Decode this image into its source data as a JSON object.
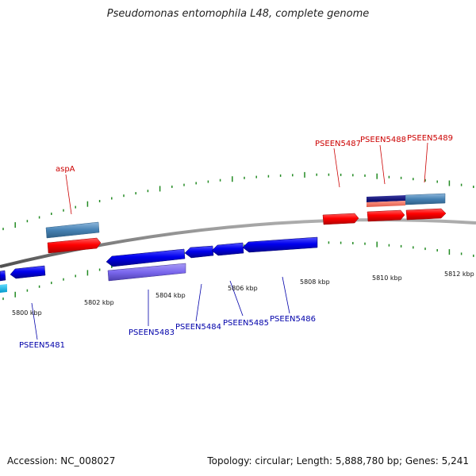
{
  "title": "Pseudomonas entomophila L48, complete genome",
  "footer": {
    "accession": "Accession: NC_008027",
    "summary": "Topology: circular; Length: 5,888,780 bp; Genes: 5,241"
  },
  "colors": {
    "backbone": "#808080",
    "tick": "#228B22",
    "forward_gene": "#ff0000",
    "reverse_gene": "#0000ee",
    "forward_cds": "#4682b4",
    "reverse_cds": "#7b68ee",
    "forward_label": "#cc0000",
    "reverse_label": "#0000aa"
  },
  "scale": {
    "unit": "kbp",
    "labels": [
      "5800 kbp",
      "5802 kbp",
      "5804 kbp",
      "5806 kbp",
      "5808 kbp",
      "5810 kbp",
      "5812 kbp"
    ]
  },
  "genes": {
    "forward": [
      "aspA",
      "PSEEN5487",
      "PSEEN5488",
      "PSEEN5489"
    ],
    "reverse": [
      "PSEEN5481",
      "PSEEN5483",
      "PSEEN5484",
      "PSEEN5485",
      "PSEEN5486"
    ]
  }
}
